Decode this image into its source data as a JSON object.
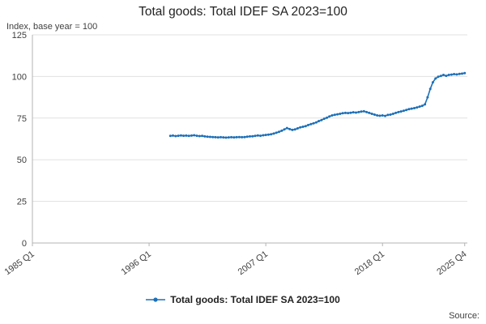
{
  "chart": {
    "title": "Total goods: Total IDEF SA 2023=100",
    "subtitle": "Index, base year = 100",
    "legend_label": "Total goods: Total IDEF SA 2023=100",
    "source_label": "Source:"
  },
  "chart_data": {
    "type": "line",
    "title": "Total goods: Total IDEF SA 2023=100",
    "ylabel": "Index, base year = 100",
    "series_name": "Total goods: Total IDEF SA 2023=100",
    "color": "#1d70b8",
    "grid": true,
    "legend_position": "bottom",
    "xlim_years": [
      1985,
      2026
    ],
    "ylim": [
      0,
      125
    ],
    "y_ticks": [
      0,
      25,
      50,
      75,
      100,
      125
    ],
    "x_ticks": [
      "1985 Q1",
      "1996 Q1",
      "2007 Q1",
      "2018 Q1",
      "2025 Q4"
    ],
    "x_start": "1998 Q1",
    "frequency": "quarterly",
    "values": [
      64.3,
      64.5,
      64.2,
      64.4,
      64.6,
      64.4,
      64.5,
      64.3,
      64.5,
      64.7,
      64.4,
      64.2,
      64.3,
      64.0,
      63.8,
      63.7,
      63.6,
      63.5,
      63.4,
      63.5,
      63.4,
      63.3,
      63.4,
      63.5,
      63.4,
      63.5,
      63.6,
      63.5,
      63.6,
      63.8,
      64.0,
      64.1,
      64.3,
      64.6,
      64.4,
      64.7,
      64.9,
      65.1,
      65.3,
      65.7,
      66.2,
      66.8,
      67.4,
      68.2,
      69.0,
      68.4,
      67.9,
      68.2,
      68.8,
      69.4,
      69.8,
      70.2,
      70.8,
      71.4,
      71.9,
      72.4,
      73.2,
      73.8,
      74.6,
      75.2,
      76.0,
      76.6,
      77.0,
      77.3,
      77.6,
      77.9,
      78.1,
      78.0,
      78.2,
      78.5,
      78.3,
      78.6,
      78.9,
      79.1,
      78.6,
      78.1,
      77.6,
      77.1,
      76.6,
      76.4,
      76.6,
      76.3,
      76.9,
      77.1,
      77.6,
      78.1,
      78.6,
      79.0,
      79.4,
      79.9,
      80.4,
      80.7,
      81.0,
      81.4,
      81.9,
      82.4,
      83.2,
      87.5,
      92.5,
      96.5,
      98.8,
      99.8,
      100.3,
      100.9,
      100.4,
      100.9,
      101.1,
      101.4,
      101.2,
      101.5,
      101.7,
      102.0
    ]
  }
}
